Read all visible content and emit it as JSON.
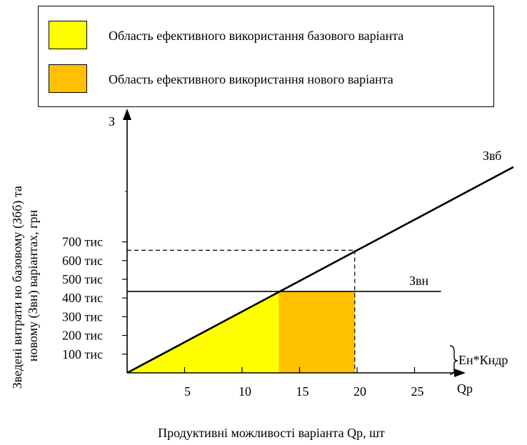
{
  "legend": {
    "items": [
      {
        "label": "Область ефективного використання базового варіанта",
        "color": "#FFFF00"
      },
      {
        "label": "Область ефективного використання нового варіанта",
        "color": "#FFC000"
      }
    ]
  },
  "chart_data": {
    "type": "line",
    "xlabel": "Продуктивні можливості варіанта Qp, шт",
    "ylabel": "Зведені витрати но базовому (Збб) та новому (Звн) варіантах, грн",
    "x_axis_name": "Qp",
    "y_axis_name": "З",
    "x_ticks": [
      5,
      10,
      15,
      20,
      25
    ],
    "y_ticks": [
      {
        "value": 100,
        "label": "100 тис"
      },
      {
        "value": 200,
        "label": "200 тис"
      },
      {
        "value": 300,
        "label": "300 тис"
      },
      {
        "value": 400,
        "label": "400 тис"
      },
      {
        "value": 500,
        "label": "500 тис"
      },
      {
        "value": 600,
        "label": "600 тис"
      },
      {
        "value": 700,
        "label": "700 тис"
      }
    ],
    "xlim": [
      0,
      28.5
    ],
    "ylim": [
      0,
      1350
    ],
    "series": [
      {
        "name": "Звб",
        "x": [
          0,
          33.6
        ],
        "y": [
          0,
          1100
        ]
      },
      {
        "name": "Звн",
        "x": [
          0,
          27.3
        ],
        "y": [
          435,
          435
        ]
      }
    ],
    "regions": [
      {
        "color": "#FFFF00",
        "shape": "triangle",
        "x": [
          0,
          13.2,
          13.2
        ],
        "y": [
          0,
          435,
          0
        ]
      },
      {
        "color": "#FFC000",
        "shape": "rect",
        "x": [
          13.2,
          19.8
        ],
        "y": [
          0,
          435
        ]
      }
    ],
    "reference_point": {
      "x": 19.8,
      "y": 655
    },
    "annotation": "Ен*Кндр"
  }
}
